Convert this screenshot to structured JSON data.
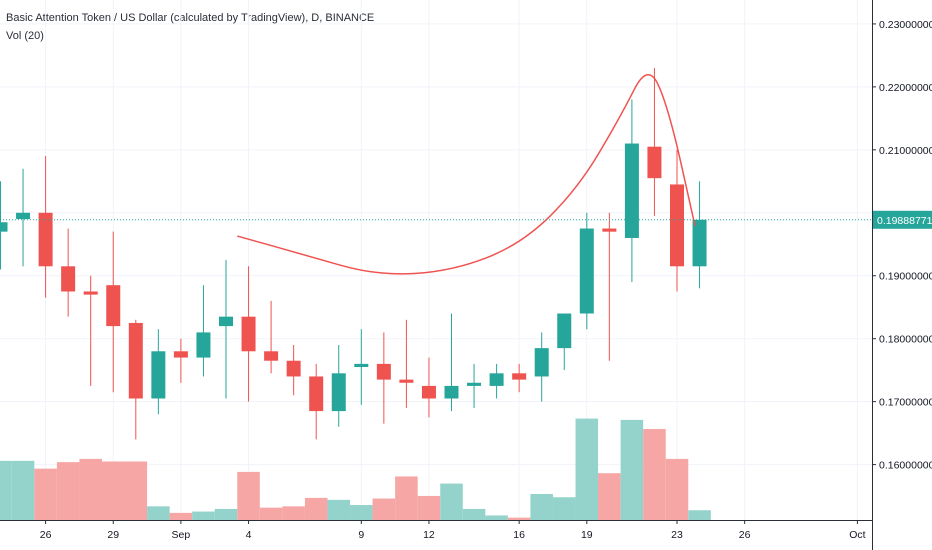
{
  "header": {
    "title": "Basic Attention Token / US Dollar (calculated by TradingView), D, BINANCE",
    "volume_label": "Vol (20)"
  },
  "chart_data": {
    "type": "candlestick",
    "title": "Basic Attention Token / US Dollar (calculated by TradingView), D, BINANCE",
    "ylim": [
      0.1512,
      0.2338
    ],
    "y_ticks": [
      0.16,
      0.17,
      0.18,
      0.19,
      0.2,
      0.21,
      0.22,
      0.23
    ],
    "y_tick_labels": [
      "0.16000000",
      "0.17000000",
      "0.18000000",
      "0.19000000",
      "0.21000000",
      "0.22000000",
      "0.23000000"
    ],
    "y_tick_values": [
      0.16,
      0.17,
      0.18,
      0.19,
      0.21,
      0.22,
      0.23
    ],
    "x_ticks": [
      {
        "index": 2,
        "label": "26"
      },
      {
        "index": 5,
        "label": "29"
      },
      {
        "index": 8,
        "label": "Sep"
      },
      {
        "index": 11,
        "label": "4"
      },
      {
        "index": 16,
        "label": "9"
      },
      {
        "index": 19,
        "label": "12"
      },
      {
        "index": 23,
        "label": "16"
      },
      {
        "index": 26,
        "label": "19"
      },
      {
        "index": 30,
        "label": "23"
      },
      {
        "index": 33,
        "label": "26"
      },
      {
        "index": 38,
        "label": "Oct"
      }
    ],
    "last_price": 0.19888771,
    "last_price_label": "0.19888771",
    "colors": {
      "up": "#26a69a",
      "down": "#ef5350",
      "vol_up": "#93d3cc",
      "vol_down": "#f5a6a5",
      "curve": "#ef5350"
    },
    "candles": [
      {
        "o": 0.197,
        "h": 0.205,
        "l": 0.191,
        "c": 0.1985
      },
      {
        "o": 0.199,
        "h": 0.207,
        "l": 0.1915,
        "c": 0.2
      },
      {
        "o": 0.2,
        "h": 0.209,
        "l": 0.1865,
        "c": 0.1915
      },
      {
        "o": 0.1915,
        "h": 0.1975,
        "l": 0.1835,
        "c": 0.1875
      },
      {
        "o": 0.1875,
        "h": 0.19,
        "l": 0.1725,
        "c": 0.187
      },
      {
        "o": 0.1885,
        "h": 0.197,
        "l": 0.1715,
        "c": 0.182
      },
      {
        "o": 0.1825,
        "h": 0.183,
        "l": 0.164,
        "c": 0.1705
      },
      {
        "o": 0.1705,
        "h": 0.1815,
        "l": 0.168,
        "c": 0.178
      },
      {
        "o": 0.178,
        "h": 0.18,
        "l": 0.173,
        "c": 0.177
      },
      {
        "o": 0.177,
        "h": 0.1885,
        "l": 0.174,
        "c": 0.181
      },
      {
        "o": 0.182,
        "h": 0.1925,
        "l": 0.1705,
        "c": 0.1835
      },
      {
        "o": 0.1835,
        "h": 0.1915,
        "l": 0.17,
        "c": 0.178
      },
      {
        "o": 0.178,
        "h": 0.186,
        "l": 0.1745,
        "c": 0.1765
      },
      {
        "o": 0.1765,
        "h": 0.179,
        "l": 0.171,
        "c": 0.174
      },
      {
        "o": 0.174,
        "h": 0.176,
        "l": 0.164,
        "c": 0.1685
      },
      {
        "o": 0.1685,
        "h": 0.179,
        "l": 0.166,
        "c": 0.1745
      },
      {
        "o": 0.1755,
        "h": 0.1815,
        "l": 0.1695,
        "c": 0.176
      },
      {
        "o": 0.176,
        "h": 0.181,
        "l": 0.1665,
        "c": 0.1735
      },
      {
        "o": 0.1735,
        "h": 0.183,
        "l": 0.169,
        "c": 0.173
      },
      {
        "o": 0.1725,
        "h": 0.177,
        "l": 0.1675,
        "c": 0.1705
      },
      {
        "o": 0.1705,
        "h": 0.184,
        "l": 0.1685,
        "c": 0.1725
      },
      {
        "o": 0.1725,
        "h": 0.176,
        "l": 0.169,
        "c": 0.173
      },
      {
        "o": 0.1725,
        "h": 0.176,
        "l": 0.1705,
        "c": 0.1745
      },
      {
        "o": 0.1745,
        "h": 0.176,
        "l": 0.1715,
        "c": 0.1735
      },
      {
        "o": 0.174,
        "h": 0.181,
        "l": 0.17,
        "c": 0.1785
      },
      {
        "o": 0.1785,
        "h": 0.184,
        "l": 0.175,
        "c": 0.184
      },
      {
        "o": 0.184,
        "h": 0.2,
        "l": 0.1815,
        "c": 0.1975
      },
      {
        "o": 0.1975,
        "h": 0.2,
        "l": 0.1765,
        "c": 0.197
      },
      {
        "o": 0.196,
        "h": 0.218,
        "l": 0.189,
        "c": 0.211
      },
      {
        "o": 0.2105,
        "h": 0.223,
        "l": 0.1995,
        "c": 0.2055
      },
      {
        "o": 0.2045,
        "h": 0.21,
        "l": 0.1875,
        "c": 0.1915
      },
      {
        "o": 0.1915,
        "h": 0.205,
        "l": 0.188,
        "c": 0.1989
      }
    ],
    "volume": {
      "ylim": [
        0,
        1
      ],
      "values": [
        0.455,
        0.455,
        0.395,
        0.445,
        0.47,
        0.45,
        0.45,
        0.105,
        0.055,
        0.065,
        0.085,
        0.37,
        0.095,
        0.105,
        0.17,
        0.155,
        0.115,
        0.165,
        0.335,
        0.185,
        0.28,
        0.085,
        0.035,
        0.018,
        0.2,
        0.175,
        0.78,
        0.36,
        0.77,
        0.7,
        0.47,
        0.075
      ]
    },
    "annotation_curve": [
      {
        "index": 10.5,
        "price": 0.1963
      },
      {
        "index": 13.4,
        "price": 0.1934
      },
      {
        "index": 16.7,
        "price": 0.19
      },
      {
        "index": 20.0,
        "price": 0.1907
      },
      {
        "index": 23.1,
        "price": 0.195
      },
      {
        "index": 25.6,
        "price": 0.2038
      },
      {
        "index": 27.5,
        "price": 0.2153
      },
      {
        "index": 28.7,
        "price": 0.2238
      },
      {
        "index": 29.6,
        "price": 0.2171
      },
      {
        "index": 30.8,
        "price": 0.1979
      }
    ]
  }
}
